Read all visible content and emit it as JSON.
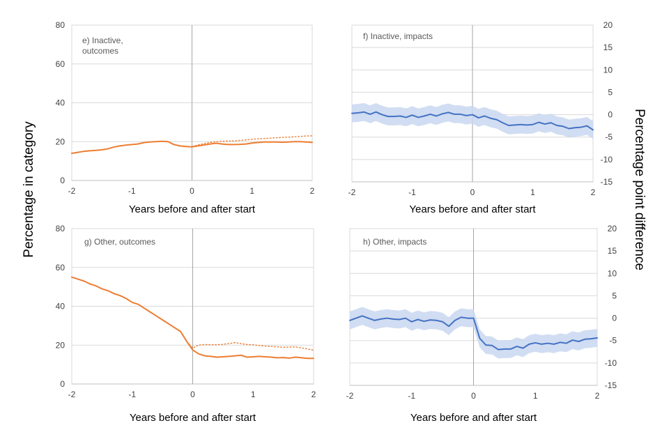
{
  "figure": {
    "ylabel_left": "Percentage in category",
    "ylabel_right": "Percentage point difference"
  },
  "chart_data": [
    {
      "id": "e",
      "type": "line",
      "title": "e) Inactive, outcomes",
      "title_lines": [
        "e) Inactive,",
        "outcomes"
      ],
      "xlabel": "Years before and after start",
      "xlim": [
        -2,
        2
      ],
      "xticks": [
        -2,
        -1,
        0,
        1,
        2
      ],
      "ylim": [
        0,
        80
      ],
      "yticks": [
        0,
        20,
        40,
        60,
        80
      ],
      "grid": "horizontal",
      "color": "#ED7D31",
      "series": [
        {
          "style": "solid",
          "x": [
            -2,
            -1.9,
            -1.8,
            -1.7,
            -1.6,
            -1.5,
            -1.4,
            -1.3,
            -1.2,
            -1.1,
            -1,
            -0.9,
            -0.8,
            -0.7,
            -0.6,
            -0.5,
            -0.4,
            -0.3,
            -0.2,
            -0.1,
            0,
            0.1,
            0.2,
            0.3,
            0.4,
            0.5,
            0.6,
            0.7,
            0.8,
            0.9,
            1,
            1.1,
            1.2,
            1.3,
            1.4,
            1.5,
            1.6,
            1.7,
            1.8,
            1.9,
            2
          ],
          "y": [
            14,
            14.5,
            15,
            15.3,
            15.5,
            15.8,
            16.3,
            17.2,
            17.8,
            18.2,
            18.5,
            18.8,
            19.5,
            19.8,
            20,
            20.2,
            20,
            18.5,
            17.8,
            17.5,
            17.3,
            17.8,
            18.3,
            18.8,
            19.2,
            18.8,
            18.5,
            18.5,
            18.6,
            18.8,
            19.3,
            19.6,
            19.8,
            19.8,
            19.8,
            19.7,
            19.8,
            20,
            20,
            19.8,
            19.6
          ]
        },
        {
          "style": "dotted",
          "x": [
            -2,
            -1.9,
            -1.8,
            -1.7,
            -1.6,
            -1.5,
            -1.4,
            -1.3,
            -1.2,
            -1.1,
            -1,
            -0.9,
            -0.8,
            -0.7,
            -0.6,
            -0.5,
            -0.4,
            -0.3,
            -0.2,
            -0.1,
            0,
            0.1,
            0.2,
            0.3,
            0.4,
            0.5,
            0.6,
            0.7,
            0.8,
            0.9,
            1,
            1.1,
            1.2,
            1.3,
            1.4,
            1.5,
            1.6,
            1.7,
            1.8,
            1.9,
            2
          ],
          "y": [
            14,
            14.5,
            15,
            15.3,
            15.5,
            15.8,
            16.3,
            17.2,
            17.8,
            18.2,
            18.5,
            18.8,
            19.5,
            19.8,
            20,
            20.2,
            20,
            18.5,
            17.8,
            17.5,
            17.5,
            18.3,
            19,
            19.6,
            20,
            20.2,
            20.3,
            20.4,
            20.6,
            20.9,
            21.2,
            21.5,
            21.6,
            21.8,
            22,
            22.2,
            22.3,
            22.5,
            22.7,
            22.9,
            23
          ]
        }
      ]
    },
    {
      "id": "f",
      "type": "line",
      "title": "f) Inactive, impacts",
      "title_lines": [
        "f) Inactive, impacts"
      ],
      "xlabel": "Years before and after start",
      "xlim": [
        -2,
        2
      ],
      "xticks": [
        -2,
        -1,
        0,
        1,
        2
      ],
      "ylim": [
        -15,
        20
      ],
      "yticks": [
        -15,
        -10,
        -5,
        0,
        5,
        10,
        15,
        20
      ],
      "grid": "horizontal",
      "color": "#4472C4",
      "band_color": "#C9D7F0",
      "series": [
        {
          "style": "solid",
          "x": [
            -2,
            -1.9,
            -1.8,
            -1.7,
            -1.6,
            -1.5,
            -1.4,
            -1.3,
            -1.2,
            -1.1,
            -1,
            -0.9,
            -0.8,
            -0.7,
            -0.6,
            -0.5,
            -0.4,
            -0.3,
            -0.2,
            -0.1,
            0,
            0.1,
            0.2,
            0.3,
            0.4,
            0.5,
            0.6,
            0.7,
            0.8,
            0.9,
            1,
            1.1,
            1.2,
            1.3,
            1.4,
            1.5,
            1.6,
            1.7,
            1.8,
            1.9,
            2
          ],
          "y": [
            0.3,
            0.4,
            0.6,
            0.1,
            0.6,
            0,
            -0.4,
            -0.4,
            -0.3,
            -0.6,
            -0.1,
            -0.6,
            -0.3,
            0.1,
            -0.3,
            0.2,
            0.5,
            0.1,
            0.1,
            -0.2,
            0,
            -0.7,
            -0.3,
            -0.8,
            -1.1,
            -1.8,
            -2.4,
            -2.3,
            -2.2,
            -2.3,
            -2.2,
            -1.7,
            -2.1,
            -1.8,
            -2.4,
            -2.6,
            -3.1,
            -2.9,
            -2.8,
            -2.5,
            -3.4
          ],
          "band_half_width": 2
        }
      ]
    },
    {
      "id": "g",
      "type": "line",
      "title": "g) Other, outcomes",
      "title_lines": [
        "g) Other, outcomes"
      ],
      "xlabel": "Years before and after start",
      "xlim": [
        -2,
        2
      ],
      "xticks": [
        -2,
        -1,
        0,
        1,
        2
      ],
      "ylim": [
        0,
        80
      ],
      "yticks": [
        0,
        20,
        40,
        60,
        80
      ],
      "grid": "horizontal",
      "color": "#ED7D31",
      "series": [
        {
          "style": "solid",
          "x": [
            -2,
            -1.9,
            -1.8,
            -1.7,
            -1.6,
            -1.5,
            -1.4,
            -1.3,
            -1.2,
            -1.1,
            -1,
            -0.9,
            -0.8,
            -0.7,
            -0.6,
            -0.5,
            -0.4,
            -0.3,
            -0.2,
            -0.1,
            0,
            0.1,
            0.2,
            0.3,
            0.4,
            0.5,
            0.6,
            0.7,
            0.8,
            0.9,
            1,
            1.1,
            1.2,
            1.3,
            1.4,
            1.5,
            1.6,
            1.7,
            1.8,
            1.9,
            2
          ],
          "y": [
            55,
            54,
            53,
            51.5,
            50.5,
            49,
            48,
            46.5,
            45.5,
            44,
            42,
            41,
            39,
            37,
            35,
            33,
            31,
            29,
            27,
            22,
            17.5,
            15.5,
            14.5,
            14.2,
            13.8,
            14,
            14.2,
            14.5,
            14.8,
            13.8,
            14,
            14.2,
            14,
            13.8,
            13.5,
            13.6,
            13.3,
            13.8,
            13.5,
            13.2,
            13.2
          ]
        },
        {
          "style": "dotted",
          "x": [
            -2,
            -1.9,
            -1.8,
            -1.7,
            -1.6,
            -1.5,
            -1.4,
            -1.3,
            -1.2,
            -1.1,
            -1,
            -0.9,
            -0.8,
            -0.7,
            -0.6,
            -0.5,
            -0.4,
            -0.3,
            -0.2,
            -0.1,
            0,
            0.1,
            0.2,
            0.3,
            0.4,
            0.5,
            0.6,
            0.7,
            0.8,
            0.9,
            1,
            1.1,
            1.2,
            1.3,
            1.4,
            1.5,
            1.6,
            1.7,
            1.8,
            1.9,
            2
          ],
          "y": [
            55,
            54,
            53,
            51.5,
            50.5,
            49,
            48,
            46.5,
            45.5,
            44,
            42,
            41,
            39,
            37,
            35,
            33,
            31,
            29,
            27,
            22,
            18.5,
            20,
            20.3,
            20.2,
            20.2,
            20.4,
            20.8,
            21.3,
            20.8,
            20.3,
            20.2,
            19.8,
            19.5,
            19.3,
            19.1,
            18.9,
            19,
            19.1,
            18.6,
            18,
            17.4
          ]
        }
      ]
    },
    {
      "id": "h",
      "type": "line",
      "title": "h) Other, impacts",
      "title_lines": [
        "h) Other, impacts"
      ],
      "xlabel": "Years before and after start",
      "xlim": [
        -2,
        2
      ],
      "xticks": [
        -2,
        -1,
        0,
        1,
        2
      ],
      "ylim": [
        -15,
        20
      ],
      "yticks": [
        -15,
        -10,
        -5,
        0,
        5,
        10,
        15,
        20
      ],
      "grid": "horizontal",
      "color": "#4472C4",
      "band_color": "#C9D7F0",
      "series": [
        {
          "style": "solid",
          "x": [
            -2,
            -1.9,
            -1.8,
            -1.7,
            -1.6,
            -1.5,
            -1.4,
            -1.3,
            -1.2,
            -1.1,
            -1,
            -0.9,
            -0.8,
            -0.7,
            -0.6,
            -0.5,
            -0.4,
            -0.3,
            -0.2,
            -0.1,
            0,
            0.1,
            0.2,
            0.3,
            0.4,
            0.5,
            0.6,
            0.7,
            0.8,
            0.9,
            1,
            1.1,
            1.2,
            1.3,
            1.4,
            1.5,
            1.6,
            1.7,
            1.8,
            1.9,
            2
          ],
          "y": [
            -0.5,
            0,
            0.5,
            0,
            -0.5,
            -0.2,
            0,
            -0.2,
            -0.3,
            0,
            -0.8,
            -0.3,
            -0.7,
            -0.4,
            -0.5,
            -0.8,
            -1.8,
            -0.5,
            0.2,
            0,
            0,
            -4.5,
            -6,
            -6.1,
            -7,
            -6.9,
            -6.9,
            -6.3,
            -6.7,
            -5.8,
            -5.5,
            -5.8,
            -5.6,
            -5.8,
            -5.4,
            -5.6,
            -4.9,
            -5.2,
            -4.7,
            -4.6,
            -4.4
          ],
          "band_half_width": 2
        }
      ]
    }
  ]
}
